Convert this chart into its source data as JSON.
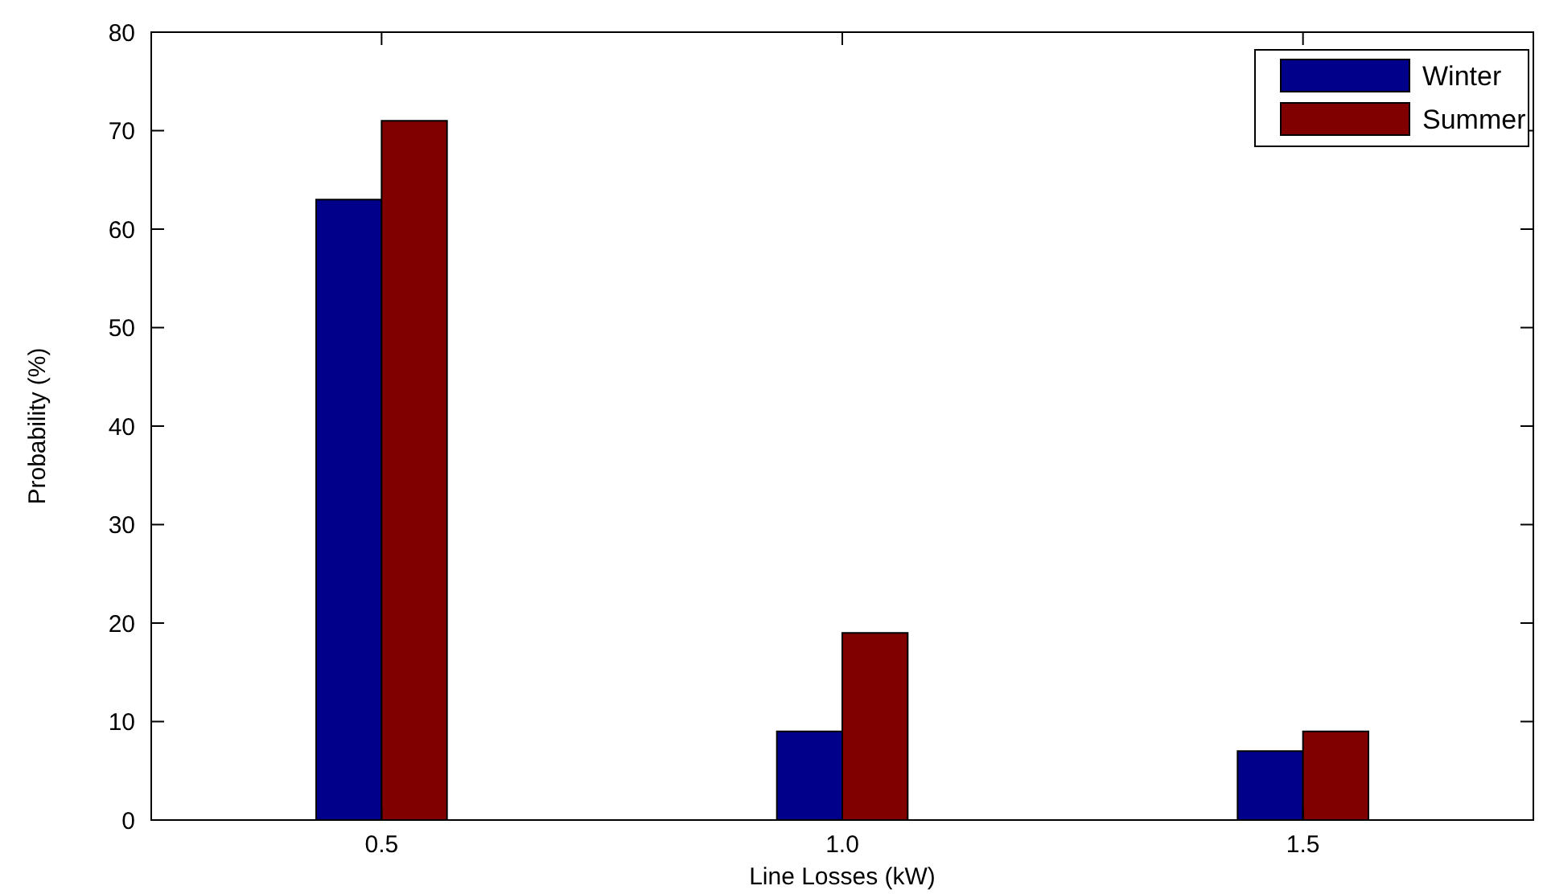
{
  "chart_data": {
    "type": "bar",
    "xlabel": "Line Losses (kW)",
    "ylabel": "Probability (%)",
    "x": [
      0.5,
      1.0,
      1.5
    ],
    "series": [
      {
        "name": "Winter",
        "color": "#00008b",
        "values": [
          63,
          9,
          7
        ]
      },
      {
        "name": "Summer",
        "color": "#800000",
        "values": [
          71,
          19,
          9
        ]
      }
    ],
    "xlim": [
      0.25,
      1.75
    ],
    "xticks": [
      {
        "value": 0.5,
        "label": "0.5"
      },
      {
        "value": 1.0,
        "label": "1.0"
      },
      {
        "value": 1.5,
        "label": "1.5"
      }
    ],
    "ylim": [
      0,
      80
    ],
    "yticks": [
      0,
      10,
      20,
      30,
      40,
      50,
      60,
      70,
      80
    ],
    "legend": "top right",
    "grid": false
  }
}
